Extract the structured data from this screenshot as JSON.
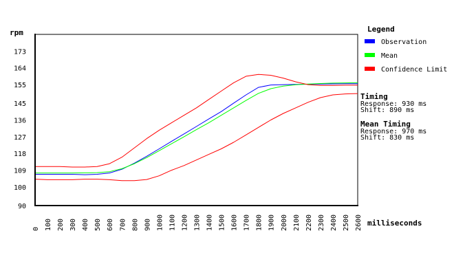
{
  "chart_data": {
    "type": "line",
    "ylabel": "rpm",
    "xlabel": "milliseconds",
    "xlim": [
      0,
      2600
    ],
    "ylim": [
      90,
      182
    ],
    "x_ticks": [
      0,
      100,
      200,
      300,
      400,
      500,
      600,
      700,
      800,
      900,
      1000,
      1100,
      1200,
      1300,
      1400,
      1500,
      1600,
      1700,
      1800,
      1900,
      2000,
      2100,
      2200,
      2300,
      2400,
      2500,
      2600
    ],
    "y_ticks": [
      90,
      100,
      109,
      118,
      127,
      136,
      145,
      155,
      164,
      173
    ],
    "series": [
      {
        "name": "Observation",
        "color": "#0000ff",
        "x": [
          0,
          100,
          200,
          300,
          400,
          500,
          600,
          700,
          800,
          900,
          1000,
          1100,
          1200,
          1300,
          1400,
          1500,
          1600,
          1700,
          1800,
          1900,
          2000,
          2100,
          2200,
          2300,
          2400,
          2500,
          2600
        ],
        "y": [
          106.8,
          106.8,
          106.8,
          106.8,
          106.6,
          106.8,
          107.5,
          109.5,
          112.8,
          116.5,
          120.5,
          124.5,
          128.5,
          132.5,
          136.5,
          140.5,
          145,
          149.5,
          153.5,
          154.8,
          155,
          155.1,
          155.2,
          155.3,
          155.4,
          155.5,
          155.5
        ]
      },
      {
        "name": "Mean",
        "color": "#00ff00",
        "x": [
          0,
          100,
          200,
          300,
          400,
          500,
          600,
          700,
          800,
          900,
          1000,
          1100,
          1200,
          1300,
          1400,
          1500,
          1600,
          1700,
          1800,
          1900,
          2000,
          2100,
          2200,
          2300,
          2400,
          2500,
          2600
        ],
        "y": [
          107.5,
          107.5,
          107.5,
          107.5,
          107.6,
          107.7,
          108.2,
          109.8,
          112.5,
          115.8,
          119.5,
          123.2,
          127,
          130.8,
          134.5,
          138.5,
          142.5,
          146.5,
          150.3,
          152.8,
          154.2,
          154.9,
          155.3,
          155.6,
          155.8,
          155.9,
          156
        ]
      },
      {
        "name": "Confidence Limit",
        "color": "#ff0000",
        "band": "upper",
        "x": [
          0,
          100,
          200,
          300,
          400,
          500,
          600,
          700,
          800,
          900,
          1000,
          1100,
          1200,
          1300,
          1400,
          1500,
          1600,
          1700,
          1800,
          1900,
          2000,
          2100,
          2200,
          2300,
          2400,
          2500,
          2600
        ],
        "y": [
          111,
          111,
          111,
          110.7,
          110.7,
          111,
          112.5,
          116,
          121,
          126,
          130.5,
          134.5,
          138.5,
          142.5,
          147,
          151.5,
          156,
          159.5,
          160.5,
          160,
          158.5,
          156.5,
          155,
          154.6,
          154.6,
          154.7,
          154.7
        ]
      },
      {
        "name": "Confidence Limit",
        "color": "#ff0000",
        "band": "lower",
        "x": [
          0,
          100,
          200,
          300,
          400,
          500,
          600,
          700,
          800,
          900,
          1000,
          1100,
          1200,
          1300,
          1400,
          1500,
          1600,
          1700,
          1800,
          1900,
          2000,
          2100,
          2200,
          2300,
          2400,
          2500,
          2600
        ],
        "y": [
          104.2,
          103.9,
          103.9,
          103.9,
          104.2,
          104.2,
          103.9,
          103.4,
          103.4,
          104,
          106,
          109,
          111.5,
          114.5,
          117.5,
          120.5,
          124,
          128,
          132,
          136,
          139.5,
          142.5,
          145.5,
          148,
          149.5,
          150,
          150.2
        ]
      }
    ]
  },
  "legend": {
    "title": "Legend",
    "items": [
      {
        "label": "Observation",
        "color": "#0000ff"
      },
      {
        "label": "Mean",
        "color": "#00ff00"
      },
      {
        "label": "Confidence Limit",
        "color": "#ff0000"
      }
    ]
  },
  "timing": {
    "title": "Timing",
    "response": "Response: 930 ms",
    "shift": "Shift: 890 ms"
  },
  "mean_timing": {
    "title": "Mean Timing",
    "response": "Response: 970 ms",
    "shift": "Shift: 830 ms"
  }
}
